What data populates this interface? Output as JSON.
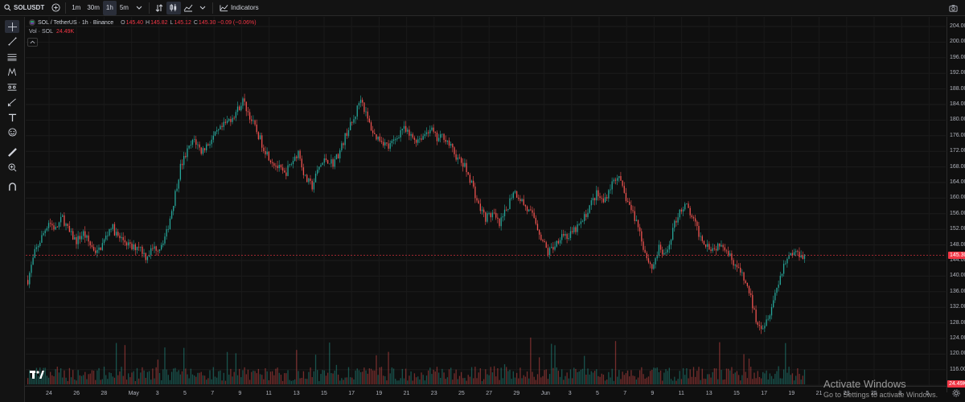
{
  "toolbar": {
    "symbol": "SOLUSDT",
    "intervals": [
      {
        "label": "1m",
        "active": false
      },
      {
        "label": "30m",
        "active": false
      },
      {
        "label": "1h",
        "active": true
      },
      {
        "label": "5m",
        "active": false
      }
    ],
    "indicators_label": "Indicators"
  },
  "legend": {
    "title": "SOL / TetherUS · 1h · Binance",
    "open_key": "O",
    "open": "145.40",
    "high_key": "H",
    "high": "145.82",
    "low_key": "L",
    "low": "145.12",
    "close_key": "C",
    "close": "145.30 −0.09 (−0.06%)"
  },
  "volume_legend": {
    "label": "Vol · SOL",
    "value": "24.49K"
  },
  "left_tools": [
    "crosshair-icon",
    "trend-line-icon",
    "fib-icon",
    "pattern-icon",
    "measure-icon",
    "brush-icon",
    "text-icon",
    "emoji-icon",
    "ruler-icon",
    "zoom-icon",
    "magnet-icon"
  ],
  "colors": {
    "up": "#26a69a",
    "down": "#ef5350",
    "price_badge": "#f23645",
    "background": "#0f0f0f"
  },
  "watermark": {
    "line1": "Activate Windows",
    "line2": "Go to Settings to activate Windows."
  },
  "chart_data": {
    "type": "candlestick",
    "symbol": "SOL / TetherUS",
    "interval": "1h",
    "exchange": "Binance",
    "ylim": [
      110,
      205
    ],
    "y_ticks": [
      "204.00",
      "200.00",
      "196.00",
      "192.00",
      "188.00",
      "184.00",
      "180.00",
      "176.00",
      "172.00",
      "168.00",
      "164.00",
      "160.00",
      "156.00",
      "152.00",
      "148.00",
      "144.00",
      "140.00",
      "136.00",
      "132.00",
      "128.00",
      "124.00",
      "120.00",
      "116.00",
      "112.00"
    ],
    "x_ticks": [
      "24",
      "26",
      "28",
      "May",
      "3",
      "5",
      "7",
      "9",
      "11",
      "13",
      "15",
      "17",
      "19",
      "21",
      "23",
      "25",
      "27",
      "29",
      "Jun",
      "3",
      "5",
      "7",
      "9",
      "11",
      "13",
      "15",
      "17",
      "19",
      "21",
      "23",
      "25",
      "3",
      "5"
    ],
    "last_price": "145.30",
    "last_volume": "24.49K",
    "close_path": [
      [
        0,
        139
      ],
      [
        2,
        146
      ],
      [
        4,
        150
      ],
      [
        6,
        154
      ],
      [
        8,
        152
      ],
      [
        10,
        155
      ],
      [
        12,
        151
      ],
      [
        14,
        149
      ],
      [
        16,
        151
      ],
      [
        18,
        148
      ],
      [
        20,
        146
      ],
      [
        22,
        149
      ],
      [
        24,
        153
      ],
      [
        26,
        150
      ],
      [
        28,
        149
      ],
      [
        30,
        147
      ],
      [
        32,
        148
      ],
      [
        34,
        145
      ],
      [
        36,
        147
      ],
      [
        38,
        147.5
      ],
      [
        40,
        151
      ],
      [
        42,
        159
      ],
      [
        44,
        168
      ],
      [
        46,
        172
      ],
      [
        48,
        175
      ],
      [
        50,
        172
      ],
      [
        52,
        174
      ],
      [
        54,
        176
      ],
      [
        56,
        178
      ],
      [
        58,
        180
      ],
      [
        60,
        182
      ],
      [
        62,
        185
      ],
      [
        64,
        181
      ],
      [
        66,
        177
      ],
      [
        68,
        173
      ],
      [
        70,
        170
      ],
      [
        72,
        168
      ],
      [
        74,
        166
      ],
      [
        76,
        169
      ],
      [
        78,
        172
      ],
      [
        80,
        165
      ],
      [
        82,
        163
      ],
      [
        84,
        168
      ],
      [
        86,
        170
      ],
      [
        88,
        169
      ],
      [
        90,
        172
      ],
      [
        92,
        177
      ],
      [
        94,
        180
      ],
      [
        96,
        186
      ],
      [
        98,
        180
      ],
      [
        100,
        176
      ],
      [
        102,
        175
      ],
      [
        104,
        173
      ],
      [
        106,
        175
      ],
      [
        108,
        178
      ],
      [
        110,
        176
      ],
      [
        112,
        175
      ],
      [
        114,
        176
      ],
      [
        116,
        178
      ],
      [
        118,
        175
      ],
      [
        120,
        176
      ],
      [
        122,
        173
      ],
      [
        124,
        170
      ],
      [
        126,
        168
      ],
      [
        128,
        164
      ],
      [
        130,
        158
      ],
      [
        132,
        155
      ],
      [
        134,
        156
      ],
      [
        136,
        153
      ],
      [
        138,
        157
      ],
      [
        140,
        162
      ],
      [
        142,
        160
      ],
      [
        144,
        157
      ],
      [
        146,
        155
      ],
      [
        148,
        150
      ],
      [
        150,
        146
      ],
      [
        152,
        148
      ],
      [
        154,
        151
      ],
      [
        156,
        150
      ],
      [
        158,
        152
      ],
      [
        160,
        154
      ],
      [
        162,
        158
      ],
      [
        164,
        161
      ],
      [
        166,
        159
      ],
      [
        168,
        163
      ],
      [
        170,
        166
      ],
      [
        172,
        161
      ],
      [
        174,
        157
      ],
      [
        176,
        153
      ],
      [
        178,
        146
      ],
      [
        180,
        142
      ],
      [
        182,
        147
      ],
      [
        184,
        145
      ],
      [
        186,
        152
      ],
      [
        188,
        157
      ],
      [
        190,
        158
      ],
      [
        192,
        154
      ],
      [
        194,
        150
      ],
      [
        196,
        148
      ],
      [
        198,
        147
      ],
      [
        200,
        149
      ],
      [
        202,
        146
      ],
      [
        204,
        143
      ],
      [
        206,
        140
      ],
      [
        208,
        136
      ],
      [
        210,
        129
      ],
      [
        212,
        127
      ],
      [
        214,
        131
      ],
      [
        216,
        137
      ],
      [
        218,
        143
      ],
      [
        220,
        146
      ],
      [
        222,
        146
      ],
      [
        224,
        145.3
      ]
    ]
  }
}
